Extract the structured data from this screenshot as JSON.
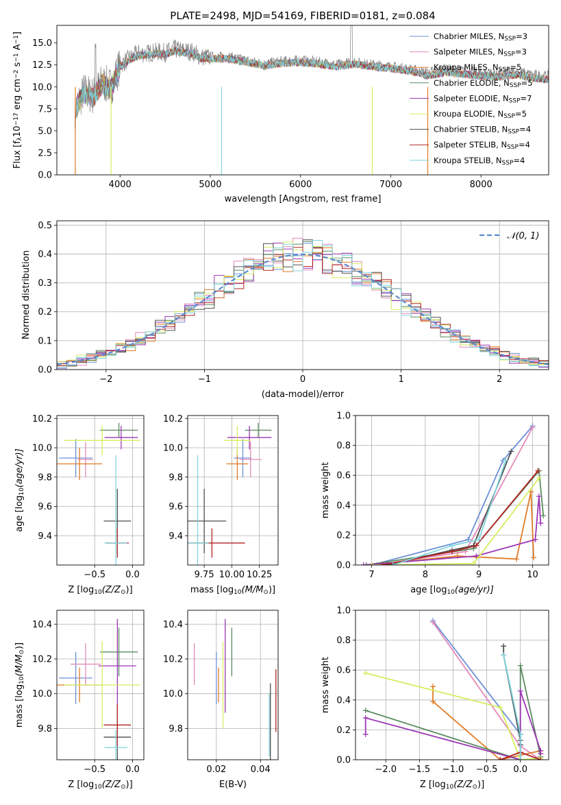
{
  "colors": {
    "c0": "#6b8fd6",
    "c1": "#e389b9",
    "c2": "#e07b24",
    "c3": "#5b8a5e",
    "c4": "#9c36b5",
    "c5": "#d4ee5e",
    "c6": "#4d4d4d",
    "c7": "#b22222",
    "c8": "#7fd4dc",
    "normal": "#5a8ad0",
    "grey": "#808080"
  },
  "chart_data": [
    {
      "id": "spectrum",
      "type": "line",
      "title": "PLATE=2498, MJD=54169, FIBERID=0181, z=0.084",
      "xlabel": "wavelength [Angstrom, rest frame]",
      "ylabel_parts": [
        "Flux [f",
        "λ",
        "10",
        "−17",
        " erg cm",
        "−2",
        " s",
        "−1",
        " A",
        "−1",
        "]"
      ],
      "xlim": [
        3300,
        8750
      ],
      "ylim": [
        0,
        17
      ],
      "xticks": [
        4000,
        5000,
        6000,
        7000,
        8000
      ],
      "yticks": [
        0.0,
        2.5,
        5.0,
        7.5,
        10.0,
        12.5,
        15.0
      ],
      "ytick_labels": [
        "0.0",
        "2.5",
        "5.0",
        "7.5",
        "10.0",
        "12.5",
        "15.0"
      ],
      "legend_position": "top-right",
      "observed_envelope": {
        "x": [
          3500,
          3600,
          3700,
          3800,
          3900,
          4000,
          4100,
          4200,
          4300,
          4400,
          4500,
          4600,
          4700,
          4800,
          4900,
          5000,
          5200,
          5400,
          5600,
          5800,
          6000,
          6200,
          6400,
          6600,
          6800,
          7000,
          7200,
          7400,
          7600,
          7800,
          8000,
          8200,
          8400,
          8600,
          8750
        ],
        "y": [
          7.5,
          9.5,
          9.0,
          10.5,
          10.0,
          12.5,
          13.2,
          13.8,
          13.8,
          14.0,
          13.9,
          14.3,
          14.1,
          14.0,
          13.4,
          13.4,
          13.4,
          13.0,
          12.6,
          12.9,
          13.0,
          12.8,
          12.5,
          12.8,
          12.5,
          12.3,
          12.0,
          11.6,
          12.0,
          11.8,
          11.6,
          11.5,
          11.7,
          11.3,
          11.2
        ]
      },
      "series": [
        {
          "name_parts": [
            "Chabrier MILES, N",
            "SSP",
            "=3"
          ],
          "color": "#6b8fd6"
        },
        {
          "name_parts": [
            "Salpeter MILES, N",
            "SSP",
            "=3"
          ],
          "color": "#e389b9"
        },
        {
          "name_parts": [
            "Kroupa MILES, N",
            "SSP",
            "=5"
          ],
          "color": "#e07b24"
        },
        {
          "name_parts": [
            "Chabrier ELODIE, N",
            "SSP",
            "=5"
          ],
          "color": "#5b8a5e"
        },
        {
          "name_parts": [
            "Salpeter ELODIE, N",
            "SSP",
            "=7"
          ],
          "color": "#9c36b5"
        },
        {
          "name_parts": [
            "Kroupa ELODIE, N",
            "SSP",
            "=5"
          ],
          "color": "#d4ee5e"
        },
        {
          "name_parts": [
            "Chabrier STELIB, N",
            "SSP",
            "=4"
          ],
          "color": "#4d4d4d"
        },
        {
          "name_parts": [
            "Salpeter STELIB, N",
            "SSP",
            "=4"
          ],
          "color": "#b22222"
        },
        {
          "name_parts": [
            "Kroupa STELIB, N",
            "SSP",
            "=4"
          ],
          "color": "#7fd4dc"
        }
      ]
    },
    {
      "id": "residuals",
      "type": "histogram",
      "xlabel": "(data-model)/error",
      "ylabel": "Normed distribution",
      "xlim": [
        -2.5,
        2.5
      ],
      "ylim": [
        0,
        0.515
      ],
      "xticks": [
        -2,
        -1,
        0,
        1,
        2
      ],
      "xtick_labels": [
        "−2",
        "−1",
        "0",
        "1",
        "2"
      ],
      "yticks": [
        0.0,
        0.1,
        0.2,
        0.3,
        0.4,
        0.5
      ],
      "ytick_labels": [
        "0.0",
        "0.1",
        "0.2",
        "0.3",
        "0.4",
        "0.5"
      ],
      "grid": true,
      "legend_position": "top-right",
      "legend_label": "𝒩(0, 1)",
      "bin_width": 0.1
    },
    {
      "id": "age-vs-Z",
      "type": "errorbar",
      "xlabel_parts": [
        "Z [log",
        "10",
        "(Z/Z",
        "⊙",
        ")]"
      ],
      "ylabel_parts": [
        "age  [log",
        "10",
        "(age/yr)]"
      ],
      "xlim": [
        -1.0,
        0.15
      ],
      "ylim": [
        9.2,
        10.22
      ],
      "xticks": [
        -0.5,
        0.0
      ],
      "xtick_labels": [
        "−0.5",
        "0.0"
      ],
      "yticks": [
        9.4,
        9.6,
        9.8,
        10.0,
        10.2
      ],
      "ytick_labels": [
        "9.4",
        "9.6",
        "9.8",
        "10.0",
        "10.2"
      ],
      "grid": true,
      "points": [
        {
          "series": 0,
          "x": -0.75,
          "y": 9.93,
          "xerr": 0.22,
          "yerr": 0.13
        },
        {
          "series": 1,
          "x": -0.62,
          "y": 9.92,
          "xerr": 0.1,
          "yerr": 0.12
        },
        {
          "series": 2,
          "x": -0.7,
          "y": 9.89,
          "xerr": 0.3,
          "yerr": 0.11
        },
        {
          "series": 3,
          "x": -0.18,
          "y": 10.12,
          "xerr": 0.25,
          "yerr": 0.05
        },
        {
          "series": 4,
          "x": -0.15,
          "y": 10.07,
          "xerr": 0.22,
          "yerr": 0.08
        },
        {
          "series": 5,
          "x": -0.4,
          "y": 10.05,
          "xerr": 0.5,
          "yerr": 0.1
        },
        {
          "series": 6,
          "x": -0.2,
          "y": 9.5,
          "xerr": 0.18,
          "yerr": 0.22
        },
        {
          "series": 7,
          "x": -0.2,
          "y": 9.35,
          "xerr": 0.15,
          "yerr": 0.1
        },
        {
          "series": 8,
          "x": -0.22,
          "y": 9.35,
          "xerr": 0.15,
          "yerr": 0.6
        }
      ]
    },
    {
      "id": "age-vs-mass",
      "type": "errorbar",
      "xlabel_parts": [
        "mass [log",
        "10",
        "(M/M",
        "⊙",
        ")]"
      ],
      "ylabel_parts": [],
      "xlim": [
        9.6,
        10.42
      ],
      "ylim": [
        9.2,
        10.22
      ],
      "xticks": [
        9.75,
        10.0,
        10.25
      ],
      "xtick_labels": [
        "9.75",
        "10.00",
        "10.25"
      ],
      "yticks": [
        9.4,
        9.6,
        9.8,
        10.0,
        10.2
      ],
      "ytick_labels": [
        "9.4",
        "9.6",
        "9.8",
        "10.0",
        "10.2"
      ],
      "grid": true,
      "points": [
        {
          "series": 0,
          "x": 10.1,
          "y": 9.93,
          "xerr": 0.08,
          "yerr": 0.13
        },
        {
          "series": 1,
          "x": 10.17,
          "y": 9.92,
          "xerr": 0.1,
          "yerr": 0.12
        },
        {
          "series": 2,
          "x": 10.05,
          "y": 9.89,
          "xerr": 0.1,
          "yerr": 0.11
        },
        {
          "series": 3,
          "x": 10.24,
          "y": 10.12,
          "xerr": 0.12,
          "yerr": 0.05
        },
        {
          "series": 4,
          "x": 10.16,
          "y": 10.07,
          "xerr": 0.2,
          "yerr": 0.08
        },
        {
          "series": 5,
          "x": 10.05,
          "y": 10.05,
          "xerr": 0.12,
          "yerr": 0.1
        },
        {
          "series": 6,
          "x": 9.75,
          "y": 9.5,
          "xerr": 0.2,
          "yerr": 0.22
        },
        {
          "series": 7,
          "x": 9.82,
          "y": 9.35,
          "xerr": 0.3,
          "yerr": 0.1
        },
        {
          "series": 8,
          "x": 9.69,
          "y": 9.35,
          "xerr": 0.1,
          "yerr": 0.6
        }
      ]
    },
    {
      "id": "weight-vs-age",
      "type": "line",
      "xlabel_parts": [
        "age  [log",
        "10",
        "(age/yr)]"
      ],
      "ylabel": "mass weight",
      "xlim": [
        6.7,
        10.3
      ],
      "ylim": [
        0,
        1.0
      ],
      "xticks": [
        7,
        8,
        9,
        10
      ],
      "xtick_labels": [
        "7",
        "8",
        "9",
        "10"
      ],
      "yticks": [
        0.0,
        0.2,
        0.4,
        0.6,
        0.8,
        1.0
      ],
      "ytick_labels": [
        "0.0",
        "0.2",
        "0.4",
        "0.6",
        "0.8",
        "1.0"
      ],
      "grid": true,
      "lines": [
        {
          "series": 0,
          "x": [
            7.0,
            8.8,
            9.45,
            10.0
          ],
          "y": [
            0.0,
            0.17,
            0.7,
            0.93
          ]
        },
        {
          "series": 1,
          "x": [
            7.1,
            8.75,
            10.0
          ],
          "y": [
            0.0,
            0.09,
            0.92
          ]
        },
        {
          "series": 2,
          "x": [
            7.0,
            8.6,
            9.7,
            9.97,
            10.02
          ],
          "y": [
            0.0,
            0.06,
            0.04,
            0.49,
            0.05
          ]
        },
        {
          "series": 3,
          "x": [
            6.9,
            8.9,
            10.12,
            10.2
          ],
          "y": [
            0.0,
            0.11,
            0.63,
            0.33
          ]
        },
        {
          "series": 4,
          "x": [
            6.85,
            8.95,
            10.05,
            10.12,
            10.15
          ],
          "y": [
            0.0,
            0.06,
            0.17,
            0.46,
            0.28
          ]
        },
        {
          "series": 5,
          "x": [
            7.0,
            8.9,
            10.12
          ],
          "y": [
            0.0,
            0.01,
            0.58
          ]
        },
        {
          "series": 6,
          "x": [
            7.3,
            8.5,
            8.9,
            9.6
          ],
          "y": [
            0.0,
            0.1,
            0.13,
            0.76
          ]
        },
        {
          "series": 7,
          "x": [
            7.2,
            8.5,
            8.95,
            10.1
          ],
          "y": [
            0.0,
            0.09,
            0.13,
            0.63
          ]
        },
        {
          "series": 8,
          "x": [
            7.4,
            8.5,
            9.0,
            9.5
          ],
          "y": [
            0.0,
            0.13,
            0.17,
            0.7
          ]
        }
      ]
    },
    {
      "id": "mass-vs-Z",
      "type": "errorbar",
      "xlabel_parts": [
        "Z [log",
        "10",
        "(Z/Z",
        "⊙",
        ")]"
      ],
      "ylabel_parts": [
        "mass [log",
        "10",
        "(M/M",
        "⊙",
        ")]"
      ],
      "xlim": [
        -1.0,
        0.15
      ],
      "ylim": [
        9.62,
        10.48
      ],
      "xticks": [
        -0.5,
        0.0
      ],
      "xtick_labels": [
        "−0.5",
        "0.0"
      ],
      "yticks": [
        9.8,
        10.0,
        10.2,
        10.4
      ],
      "ytick_labels": [
        "9.8",
        "10.0",
        "10.2",
        "10.4"
      ],
      "grid": true,
      "points": [
        {
          "series": 0,
          "x": -0.75,
          "y": 10.09,
          "xerr": 0.22,
          "yerr": 0.15
        },
        {
          "series": 1,
          "x": -0.62,
          "y": 10.17,
          "xerr": 0.2,
          "yerr": 0.12
        },
        {
          "series": 2,
          "x": -0.7,
          "y": 10.05,
          "xerr": 0.3,
          "yerr": 0.1
        },
        {
          "series": 3,
          "x": -0.18,
          "y": 10.24,
          "xerr": 0.25,
          "yerr": 0.14
        },
        {
          "series": 4,
          "x": -0.2,
          "y": 10.16,
          "xerr": 0.25,
          "yerr": 0.27
        },
        {
          "series": 5,
          "x": -0.4,
          "y": 10.05,
          "xerr": 0.5,
          "yerr": 0.25
        },
        {
          "series": 6,
          "x": -0.2,
          "y": 9.75,
          "xerr": 0.18,
          "yerr": 0.15
        },
        {
          "series": 7,
          "x": -0.2,
          "y": 9.82,
          "xerr": 0.18,
          "yerr": 0.12
        },
        {
          "series": 8,
          "x": -0.22,
          "y": 9.69,
          "xerr": 0.15,
          "yerr": 0.1
        }
      ]
    },
    {
      "id": "mass-vs-EBV",
      "type": "errorbar",
      "xlabel": "E(B-V)",
      "ylabel_parts": [],
      "xlim": [
        0.007,
        0.048
      ],
      "ylim": [
        9.62,
        10.48
      ],
      "xticks": [
        0.02,
        0.04
      ],
      "xtick_labels": [
        "0.02",
        "0.04"
      ],
      "yticks": [
        9.8,
        10.0,
        10.2,
        10.4
      ],
      "ytick_labels": [
        "9.8",
        "10.0",
        "10.2",
        "10.4"
      ],
      "grid": true,
      "points": [
        {
          "series": 0,
          "x": 0.02,
          "y": 10.09,
          "xerr": 0.0,
          "yerr": 0.15
        },
        {
          "series": 1,
          "x": 0.01,
          "y": 10.17,
          "xerr": 0.0,
          "yerr": 0.12
        },
        {
          "series": 2,
          "x": 0.021,
          "y": 10.05,
          "xerr": 0.0,
          "yerr": 0.1
        },
        {
          "series": 3,
          "x": 0.027,
          "y": 10.24,
          "xerr": 0.0,
          "yerr": 0.14
        },
        {
          "series": 4,
          "x": 0.024,
          "y": 10.16,
          "xerr": 0.0,
          "yerr": 0.27
        },
        {
          "series": 5,
          "x": 0.023,
          "y": 10.05,
          "xerr": 0.0,
          "yerr": 0.25
        },
        {
          "series": 6,
          "x": 0.0445,
          "y": 9.75,
          "xerr": 0.0,
          "yerr": 0.31
        },
        {
          "series": 7,
          "x": 0.047,
          "y": 9.96,
          "xerr": 0.0,
          "yerr": 0.18
        },
        {
          "series": 8,
          "x": 0.044,
          "y": 9.82,
          "xerr": 0.0,
          "yerr": 0.18
        }
      ]
    },
    {
      "id": "weight-vs-Z",
      "type": "line",
      "xlabel_parts": [
        "Z [log",
        "10",
        "(Z/Z",
        "⊙",
        ")]"
      ],
      "ylabel": "mass weight",
      "xlim": [
        -2.45,
        0.42
      ],
      "ylim": [
        0,
        1.0
      ],
      "xticks": [
        -2.0,
        -1.5,
        -1.0,
        -0.5,
        0.0
      ],
      "xtick_labels": [
        "−2.0",
        "−1.5",
        "−1.0",
        "−0.5",
        "0.0"
      ],
      "yticks": [
        0.0,
        0.2,
        0.4,
        0.6,
        0.8,
        1.0
      ],
      "ytick_labels": [
        "0.0",
        "0.2",
        "0.4",
        "0.6",
        "0.8",
        "1.0"
      ],
      "grid": true,
      "lines": [
        {
          "series": 0,
          "x": [
            -1.3,
            0.0,
            0.0,
            0.22
          ],
          "y": [
            0.93,
            0.17,
            0.0,
            0.0
          ]
        },
        {
          "series": 1,
          "x": [
            -1.3,
            0.0,
            0.3
          ],
          "y": [
            0.92,
            0.09,
            0.0
          ]
        },
        {
          "series": 2,
          "x": [
            -1.3,
            -1.3,
            -0.3,
            0.3,
            0.3
          ],
          "y": [
            0.49,
            0.39,
            0.0,
            0.06,
            0.04
          ]
        },
        {
          "series": 3,
          "x": [
            -2.3,
            0.0,
            0.0,
            0.3
          ],
          "y": [
            0.33,
            0.0,
            0.63,
            0.02
          ]
        },
        {
          "series": 4,
          "x": [
            -2.3,
            -2.3,
            0.0,
            0.0,
            0.3,
            0.3
          ],
          "y": [
            0.17,
            0.28,
            0.0,
            0.46,
            0.06,
            0.04
          ]
        },
        {
          "series": 5,
          "x": [
            -2.3,
            -0.3,
            0.0,
            0.3
          ],
          "y": [
            0.58,
            0.35,
            0.0,
            0.01
          ]
        },
        {
          "series": 6,
          "x": [
            -0.25,
            -0.25,
            0.0,
            0.0
          ],
          "y": [
            0.76,
            0.7,
            0.13,
            0.1
          ]
        },
        {
          "series": 7,
          "x": [
            -0.3,
            0.0,
            0.3
          ],
          "y": [
            0.0,
            0.05,
            0.0
          ]
        },
        {
          "series": 8,
          "x": [
            -0.25,
            0.0,
            0.0
          ],
          "y": [
            0.7,
            0.17,
            0.0
          ]
        }
      ]
    }
  ]
}
